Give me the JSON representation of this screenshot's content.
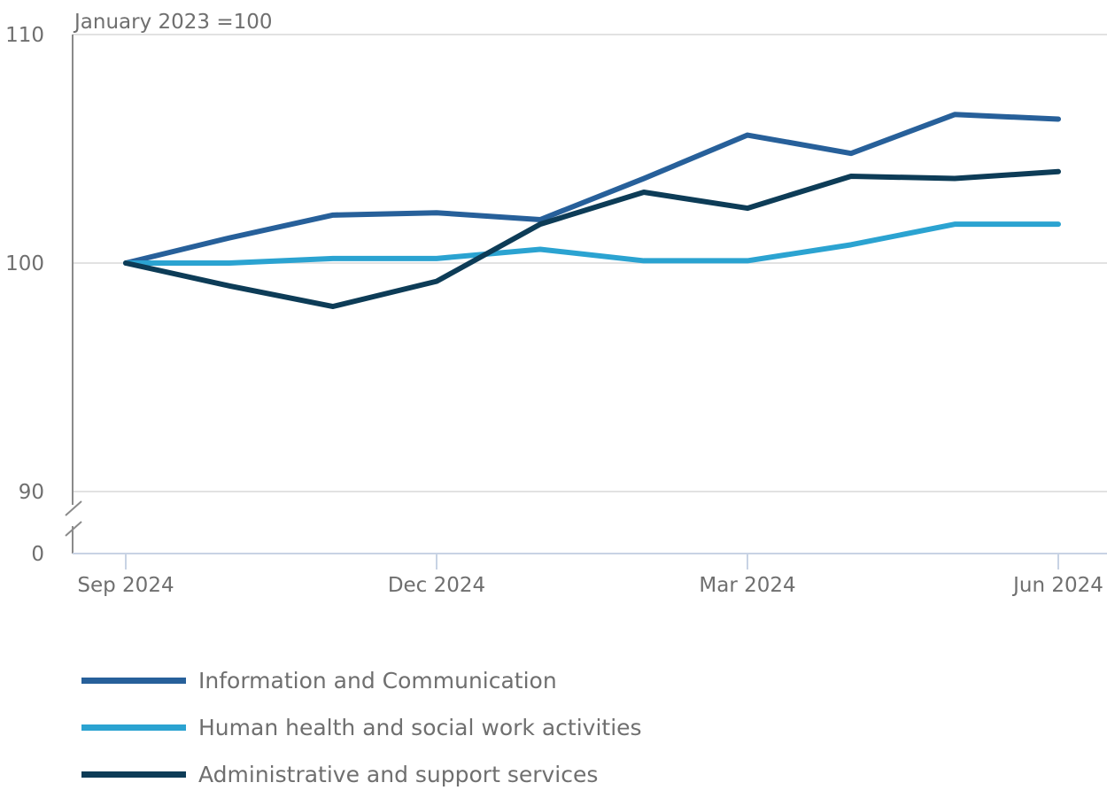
{
  "chart_data": {
    "type": "line",
    "unit_label": "January 2023 =100",
    "y_ticks": [
      110,
      100,
      90,
      0
    ],
    "ylim": [
      90,
      110
    ],
    "y_axis_break": true,
    "x_tick_labels": [
      "Sep 2024",
      "Dec 2024",
      "Mar 2024",
      "Jun 2024"
    ],
    "x_tick_positions": [
      0,
      3,
      6,
      9
    ],
    "points_count": 10,
    "grid": true,
    "legend_position": "bottom",
    "series": [
      {
        "name": "Information and Communication",
        "color": "#27609a",
        "values": [
          100,
          101.1,
          102.1,
          102.2,
          101.9,
          103.7,
          105.6,
          104.8,
          106.5,
          106.3
        ]
      },
      {
        "name": "Human health and social work activities",
        "color": "#2ba3d1",
        "values": [
          100,
          100,
          100.2,
          100.2,
          100.6,
          100.1,
          100.1,
          100.8,
          101.7,
          101.7
        ]
      },
      {
        "name": "Administrative and support services",
        "color": "#0d3c57",
        "values": [
          100,
          99,
          98.1,
          99.2,
          101.7,
          103.1,
          102.4,
          103.8,
          103.7,
          104
        ]
      }
    ]
  }
}
